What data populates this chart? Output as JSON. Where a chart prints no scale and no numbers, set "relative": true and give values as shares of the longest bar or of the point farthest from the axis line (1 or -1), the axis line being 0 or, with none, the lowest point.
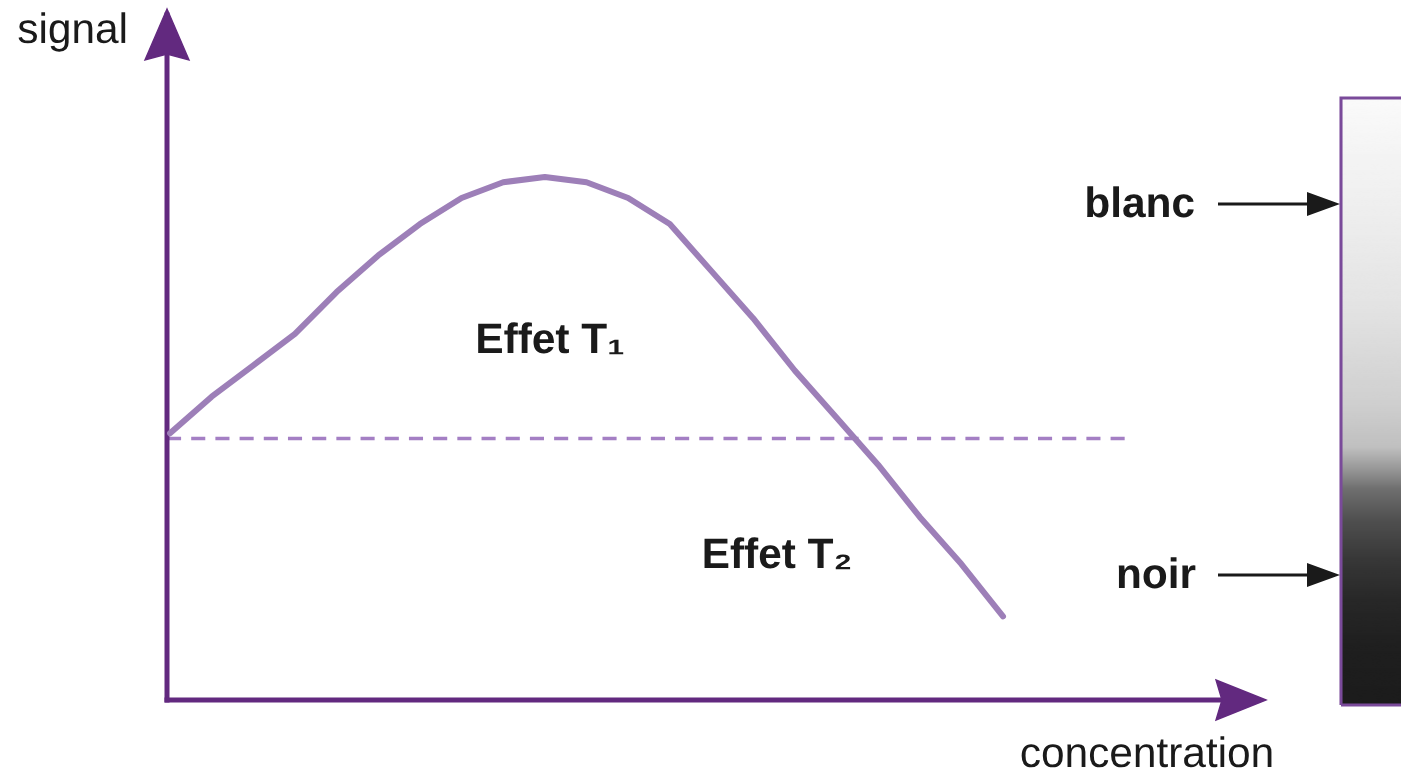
{
  "chart_data": {
    "type": "line",
    "xlabel": "concentration",
    "ylabel": "signal",
    "relative": true,
    "categories": [
      null,
      null,
      null,
      null,
      null,
      null,
      null,
      null,
      null,
      null,
      null,
      null,
      null,
      null,
      null,
      null,
      null,
      null,
      null,
      null,
      null
    ],
    "series": [
      {
        "color": "#9d7fb8",
        "values": [
          0.51,
          0.58,
          0.64,
          0.7,
          0.78,
          0.85,
          0.91,
          0.96,
          0.99,
          1,
          0.99,
          0.96,
          0.91,
          0.82,
          0.73,
          0.63,
          0.54,
          0.45,
          0.35,
          0.26,
          0.16
        ]
      }
    ],
    "ref_lines": [
      {
        "axis": "y",
        "value": 0.5,
        "color": "#a47fc4",
        "line_style": "dashed"
      }
    ],
    "annotations": [
      "Effet T₁",
      "Effet T₂",
      "blanc",
      "noir"
    ]
  }
}
